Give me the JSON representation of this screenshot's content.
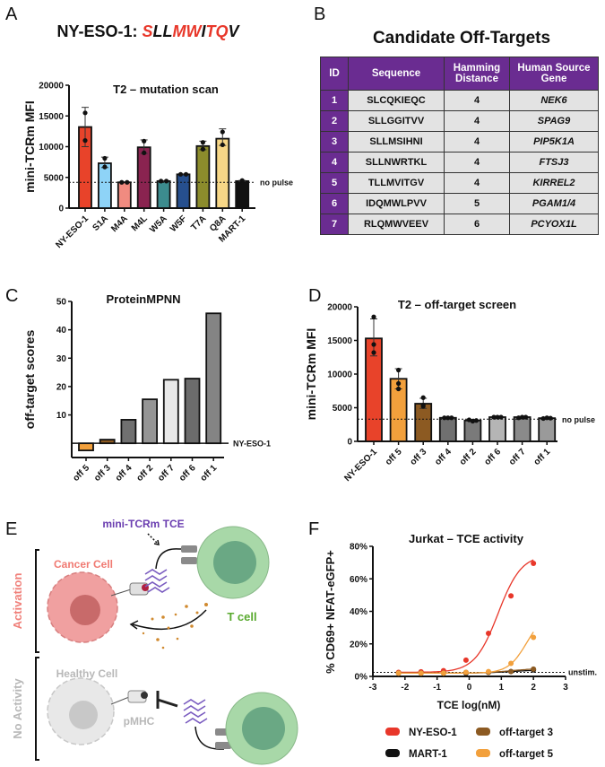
{
  "panel_letters": [
    "A",
    "B",
    "C",
    "D",
    "E",
    "F"
  ],
  "panelA": {
    "title_prefix": "NY-ESO-1: ",
    "peptide": [
      {
        "aa": "S",
        "color": "#e8372a"
      },
      {
        "aa": "L",
        "color": "#111111"
      },
      {
        "aa": "L",
        "color": "#111111"
      },
      {
        "aa": "M",
        "color": "#e8372a"
      },
      {
        "aa": "W",
        "color": "#e8372a"
      },
      {
        "aa": "I",
        "color": "#111111"
      },
      {
        "aa": "T",
        "color": "#e8372a"
      },
      {
        "aa": "Q",
        "color": "#e8372a"
      },
      {
        "aa": "V",
        "color": "#111111"
      }
    ]
  },
  "panelB": {
    "title": "Candidate Off-Targets",
    "headers": [
      "ID",
      "Sequence",
      "Hamming Distance",
      "Human Source Gene"
    ],
    "rows": [
      [
        "1",
        "SLCQKIEQC",
        "4",
        "NEK6"
      ],
      [
        "2",
        "SLLGGITVV",
        "4",
        "SPAG9"
      ],
      [
        "3",
        "SLLMSIHNI",
        "4",
        "PIP5K1A"
      ],
      [
        "4",
        "SLLNWRTKL",
        "4",
        "FTSJ3"
      ],
      [
        "5",
        "TLLMVITGV",
        "4",
        "KIRREL2"
      ],
      [
        "6",
        "IDQMWLPVV",
        "5",
        "PGAM1/4"
      ],
      [
        "7",
        "RLQMWVEEV",
        "6",
        "PCYOX1L"
      ]
    ],
    "header_color": "#6a2c91"
  },
  "panelE": {
    "tce_label": "mini-TCRm TCE",
    "cancer_label": "Cancer Cell",
    "tcell_label": "T cell",
    "healthy_label": "Healthy Cell",
    "pmhc_label": "pMHC",
    "activation_label": "Activation",
    "no_activity_label": "No Activity"
  },
  "chart_data": [
    {
      "id": "A",
      "type": "bar",
      "title": "T2 – mutation scan",
      "ylabel": "mini-TCRm MFI",
      "xlabel": "",
      "ylim": [
        0,
        20000
      ],
      "yticks": [
        0,
        5000,
        10000,
        15000,
        20000
      ],
      "categories": [
        "NY-ESO-1",
        "S1A",
        "M4A",
        "M4L",
        "W5A",
        "W5F",
        "T7A",
        "Q8A",
        "MART-1"
      ],
      "values": [
        13200,
        7300,
        4200,
        9900,
        4400,
        5500,
        10100,
        11300,
        4400
      ],
      "err_low": [
        10000,
        6600,
        4150,
        8900,
        4350,
        5450,
        9500,
        10200,
        4300
      ],
      "err_high": [
        16400,
        8300,
        4250,
        11100,
        4450,
        5550,
        10900,
        12900,
        4500
      ],
      "points": [
        [
          15500,
          11000
        ],
        [
          8100,
          6700
        ],
        [
          4200,
          4200
        ],
        [
          10900,
          9000
        ],
        [
          4400,
          4400
        ],
        [
          5500,
          5500
        ],
        [
          10700,
          9600
        ],
        [
          12400,
          10300
        ],
        [
          4300,
          4500
        ]
      ],
      "colors": [
        "#e8432a",
        "#8ed3f7",
        "#f08b80",
        "#8a2350",
        "#3c8c8e",
        "#264f8e",
        "#8c8c2c",
        "#f7d787",
        "#111111"
      ],
      "reference": {
        "value": 4200,
        "label": "no pulse"
      }
    },
    {
      "id": "C",
      "type": "bar",
      "title": "ProteinMPNN",
      "ylabel": "off-target scores",
      "xlabel": "",
      "ylim": [
        -5,
        50
      ],
      "yticks": [
        10,
        20,
        30,
        40,
        50
      ],
      "categories": [
        "off 5",
        "off 3",
        "off 4",
        "off 2",
        "off 7",
        "off 6",
        "off 1"
      ],
      "values": [
        -2.5,
        1.3,
        8.3,
        15.5,
        22.4,
        22.8,
        45.8
      ],
      "colors": [
        "#f2a03c",
        "#8c5a22",
        "#707070",
        "#959595",
        "#e8e8e8",
        "#6c6c6c",
        "#848484"
      ],
      "reference": {
        "value": 0,
        "label": "NY-ESO-1"
      }
    },
    {
      "id": "D",
      "type": "bar",
      "title": "T2 – off-target screen",
      "ylabel": "mini-TCRm MFI",
      "xlabel": "",
      "ylim": [
        0,
        20000
      ],
      "yticks": [
        0,
        5000,
        10000,
        15000,
        20000
      ],
      "categories": [
        "NY-ESO-1",
        "off 5",
        "off 3",
        "off 4",
        "off 2",
        "off 6",
        "off 7",
        "off 1"
      ],
      "values": [
        15300,
        9300,
        5600,
        3500,
        3100,
        3600,
        3600,
        3450
      ],
      "err_low": [
        12700,
        7800,
        4900,
        3450,
        2950,
        3550,
        3500,
        3400
      ],
      "err_high": [
        18200,
        10800,
        6400,
        3550,
        3250,
        3650,
        3700,
        3500
      ],
      "points": [
        [
          18500,
          14400,
          13200
        ],
        [
          10600,
          8600,
          7800
        ],
        [
          6500,
          5400,
          5200
        ],
        [
          3500,
          3500,
          3500
        ],
        [
          3200,
          3000,
          3100
        ],
        [
          3600,
          3600,
          3600
        ],
        [
          3500,
          3600,
          3600
        ],
        [
          3400,
          3500,
          3450
        ]
      ],
      "colors": [
        "#e8432a",
        "#f2a03c",
        "#8c5a22",
        "#707070",
        "#7a7a7a",
        "#b5b5b5",
        "#8a8a8a",
        "#9a9a9a"
      ],
      "reference": {
        "value": 3300,
        "label": "no pulse"
      }
    },
    {
      "id": "F",
      "type": "line",
      "title": "Jurkat – TCE activity",
      "xlabel": "TCE log(nM)",
      "ylabel": "% CD69+ NFAT-eGFP+",
      "xlim": [
        -3,
        3
      ],
      "ylim": [
        0,
        80
      ],
      "xticks": [
        -3,
        -2,
        -1,
        0,
        1,
        2,
        3
      ],
      "yticks": [
        0,
        20,
        40,
        60,
        80
      ],
      "ytick_suffix": "%",
      "x": [
        -2.2,
        -1.5,
        -0.8,
        -0.1,
        0.6,
        1.3,
        2.0
      ],
      "series": [
        {
          "name": "NY-ESO-1",
          "color": "#e8372a",
          "values": [
            2.5,
            2.8,
            3.5,
            10,
            26.5,
            49.5,
            69.5
          ],
          "fit": {
            "bottom": 2.5,
            "top": 75,
            "logEC50": 0.9,
            "hill": 1.2
          }
        },
        {
          "name": "MART-1",
          "color": "#111111",
          "values": [
            2,
            2,
            2,
            2,
            2.5,
            3,
            4
          ],
          "fit": {
            "bottom": 2,
            "top": 4,
            "logEC50": 1.3,
            "hill": 1
          }
        },
        {
          "name": "off-target 3",
          "color": "#8c5a22",
          "values": [
            2,
            2,
            2,
            2.5,
            2.5,
            3,
            4.5
          ],
          "fit": {
            "bottom": 2,
            "top": 5,
            "logEC50": 1.3,
            "hill": 1
          }
        },
        {
          "name": "off-target 5",
          "color": "#f2a03c",
          "values": [
            2,
            2,
            2,
            2.5,
            3,
            8,
            24
          ],
          "fit": {
            "bottom": 2,
            "top": 40,
            "logEC50": 1.8,
            "hill": 1.5
          }
        }
      ],
      "reference": {
        "value": 2.5,
        "label": "unstim."
      },
      "legend": "bottom"
    }
  ]
}
